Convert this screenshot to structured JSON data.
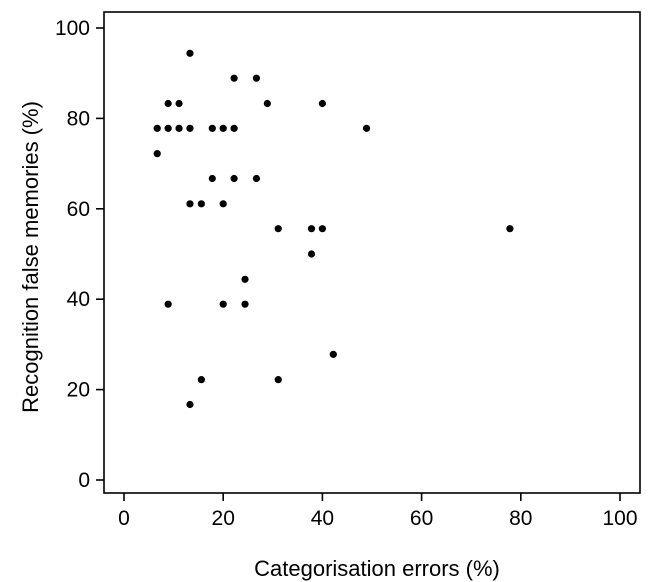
{
  "chart_data": {
    "type": "scatter",
    "xlabel": "Categorisation errors (%)",
    "ylabel": "Recognition false memories (%)",
    "xlim": [
      0,
      100
    ],
    "ylim": [
      0,
      100
    ],
    "x_ticks": [
      0,
      20,
      40,
      60,
      80,
      100
    ],
    "y_ticks": [
      0,
      20,
      40,
      60,
      80,
      100
    ],
    "grid": false,
    "legend": "none",
    "marker_color": "#000000",
    "points": [
      {
        "x": 13.3,
        "y": 94.4
      },
      {
        "x": 22.2,
        "y": 88.9
      },
      {
        "x": 26.7,
        "y": 88.9
      },
      {
        "x": 8.9,
        "y": 83.3
      },
      {
        "x": 11.1,
        "y": 83.3
      },
      {
        "x": 28.9,
        "y": 83.3
      },
      {
        "x": 40.0,
        "y": 83.3
      },
      {
        "x": 6.7,
        "y": 77.8
      },
      {
        "x": 8.9,
        "y": 77.8
      },
      {
        "x": 11.1,
        "y": 77.8
      },
      {
        "x": 13.3,
        "y": 77.8
      },
      {
        "x": 17.8,
        "y": 77.8
      },
      {
        "x": 20.0,
        "y": 77.8
      },
      {
        "x": 22.2,
        "y": 77.8
      },
      {
        "x": 48.9,
        "y": 77.8
      },
      {
        "x": 6.7,
        "y": 72.2
      },
      {
        "x": 17.8,
        "y": 66.7
      },
      {
        "x": 22.2,
        "y": 66.7
      },
      {
        "x": 26.7,
        "y": 66.7
      },
      {
        "x": 13.3,
        "y": 61.1
      },
      {
        "x": 15.6,
        "y": 61.1
      },
      {
        "x": 20.0,
        "y": 61.1
      },
      {
        "x": 31.1,
        "y": 55.6
      },
      {
        "x": 37.8,
        "y": 55.6
      },
      {
        "x": 40.0,
        "y": 55.6
      },
      {
        "x": 77.8,
        "y": 55.6
      },
      {
        "x": 37.8,
        "y": 50.0
      },
      {
        "x": 24.4,
        "y": 44.4
      },
      {
        "x": 8.9,
        "y": 38.9
      },
      {
        "x": 20.0,
        "y": 38.9
      },
      {
        "x": 24.4,
        "y": 38.9
      },
      {
        "x": 42.2,
        "y": 27.8
      },
      {
        "x": 15.6,
        "y": 22.2
      },
      {
        "x": 31.1,
        "y": 22.2
      },
      {
        "x": 13.3,
        "y": 16.7
      }
    ]
  }
}
